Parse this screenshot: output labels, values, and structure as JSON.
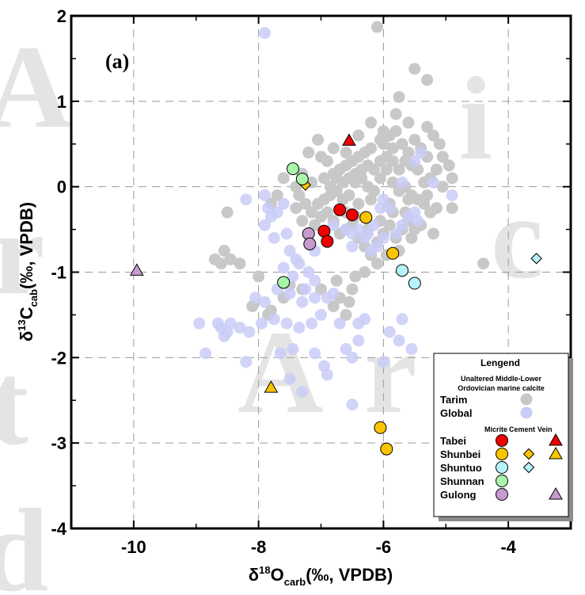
{
  "chart_data": {
    "type": "scatter",
    "panel_label": "(a)",
    "xlabel": {
      "prefix": "δ",
      "sup": "18",
      "main": "O",
      "sub": "carb",
      "suffix": "(‰, VPDB)"
    },
    "ylabel": {
      "prefix": "δ",
      "sup": "13",
      "main": "C",
      "sub": "cab",
      "suffix": "(‰, VPDB)"
    },
    "xlim": [
      -11,
      -3
    ],
    "ylim": [
      -4,
      2
    ],
    "xticks": [
      -10,
      -8,
      -6,
      -4
    ],
    "yticks": [
      -4,
      -3,
      -2,
      -1,
      0,
      1,
      2
    ],
    "xtick_labels": [
      "-10",
      "-8",
      "-6",
      "-4"
    ],
    "ytick_labels": [
      "-4",
      "-3",
      "-2",
      "-1",
      "0",
      "1",
      "2"
    ],
    "grid": true,
    "colors": {
      "tarim": "#c8c8c8",
      "global": "#c9ccf7",
      "tabei": "#ee0000",
      "shunbei": "#fcc400",
      "shuntuo": "#b6f3fb",
      "shunnan": "#a9f5a9",
      "gulong": "#c79ad0"
    },
    "series": [
      {
        "name": "Tarim",
        "marker": "circle",
        "color": "#c8c8c8",
        "points": [
          [
            -6.1,
            1.87
          ],
          [
            -5.5,
            1.38
          ],
          [
            -5.3,
            1.25
          ],
          [
            -5.75,
            1.05
          ],
          [
            -5.8,
            0.85
          ],
          [
            -5.6,
            0.75
          ],
          [
            -5.3,
            0.7
          ],
          [
            -5.2,
            0.6
          ],
          [
            -5.1,
            0.5
          ],
          [
            -6.05,
            0.55
          ],
          [
            -6.0,
            0.5
          ],
          [
            -5.9,
            0.6
          ],
          [
            -5.85,
            0.45
          ],
          [
            -5.7,
            0.5
          ],
          [
            -5.6,
            0.4
          ],
          [
            -5.5,
            0.55
          ],
          [
            -5.4,
            0.45
          ],
          [
            -5.3,
            0.35
          ],
          [
            -6.2,
            0.45
          ],
          [
            -6.3,
            0.4
          ],
          [
            -6.4,
            0.35
          ],
          [
            -6.5,
            0.3
          ],
          [
            -6.6,
            0.25
          ],
          [
            -6.7,
            0.2
          ],
          [
            -6.8,
            0.15
          ],
          [
            -6.9,
            0.3
          ],
          [
            -7.0,
            0.35
          ],
          [
            -7.2,
            0.4
          ],
          [
            -7.05,
            0.55
          ],
          [
            -6.95,
            0.1
          ],
          [
            -6.85,
            0.0
          ],
          [
            -6.75,
            -0.05
          ],
          [
            -6.65,
            -0.15
          ],
          [
            -6.55,
            -0.1
          ],
          [
            -6.45,
            0.05
          ],
          [
            -6.35,
            0.1
          ],
          [
            -6.25,
            0.0
          ],
          [
            -6.15,
            -0.05
          ],
          [
            -6.05,
            0.1
          ],
          [
            -5.95,
            0.2
          ],
          [
            -5.85,
            0.05
          ],
          [
            -5.75,
            -0.05
          ],
          [
            -5.65,
            0.0
          ],
          [
            -5.55,
            -0.1
          ],
          [
            -5.45,
            -0.15
          ],
          [
            -5.35,
            -0.2
          ],
          [
            -5.25,
            -0.3
          ],
          [
            -5.15,
            -0.25
          ],
          [
            -5.05,
            0.0
          ],
          [
            -4.95,
            0.25
          ],
          [
            -4.9,
            0.1
          ],
          [
            -5.05,
            0.35
          ],
          [
            -5.15,
            0.2
          ],
          [
            -5.25,
            0.1
          ],
          [
            -5.35,
            0.05
          ],
          [
            -5.45,
            0.2
          ],
          [
            -5.55,
            0.25
          ],
          [
            -5.65,
            0.3
          ],
          [
            -5.75,
            0.2
          ],
          [
            -5.85,
            0.3
          ],
          [
            -5.95,
            0.35
          ],
          [
            -6.05,
            0.3
          ],
          [
            -6.15,
            0.2
          ],
          [
            -6.25,
            0.25
          ],
          [
            -6.35,
            0.2
          ],
          [
            -6.45,
            0.15
          ],
          [
            -6.55,
            0.1
          ],
          [
            -6.65,
            0.05
          ],
          [
            -6.75,
            0.1
          ],
          [
            -6.85,
            -0.1
          ],
          [
            -6.95,
            -0.15
          ],
          [
            -7.05,
            -0.2
          ],
          [
            -7.15,
            -0.3
          ],
          [
            -7.25,
            -0.2
          ],
          [
            -7.35,
            -0.1
          ],
          [
            -7.4,
            -0.25
          ],
          [
            -7.3,
            -0.4
          ],
          [
            -7.1,
            -0.45
          ],
          [
            -7.0,
            -0.35
          ],
          [
            -6.9,
            -0.3
          ],
          [
            -6.8,
            -0.4
          ],
          [
            -6.7,
            -0.55
          ],
          [
            -6.6,
            -0.5
          ],
          [
            -6.5,
            -0.45
          ],
          [
            -6.4,
            -0.6
          ],
          [
            -6.3,
            -0.7
          ],
          [
            -6.2,
            -0.8
          ],
          [
            -6.1,
            -0.65
          ],
          [
            -6.0,
            -0.55
          ],
          [
            -5.9,
            -0.45
          ],
          [
            -5.8,
            -0.6
          ],
          [
            -5.7,
            -0.5
          ],
          [
            -5.6,
            -0.4
          ],
          [
            -5.5,
            -0.5
          ],
          [
            -6.1,
            -0.9
          ],
          [
            -6.3,
            -1.0
          ],
          [
            -6.45,
            -1.05
          ],
          [
            -6.5,
            -1.2
          ],
          [
            -6.55,
            -1.35
          ],
          [
            -6.6,
            -1.5
          ],
          [
            -6.7,
            -1.3
          ],
          [
            -6.8,
            -1.4
          ],
          [
            -6.75,
            -1.1
          ],
          [
            -7.0,
            -1.2
          ],
          [
            -7.3,
            -1.2
          ],
          [
            -7.5,
            -1.15
          ],
          [
            -7.6,
            -1.3
          ],
          [
            -7.8,
            -1.45
          ],
          [
            -7.85,
            -1.5
          ],
          [
            -8.0,
            -1.05
          ],
          [
            -8.1,
            -1.4
          ],
          [
            -8.3,
            -0.9
          ],
          [
            -8.45,
            -0.85
          ],
          [
            -8.55,
            -0.75
          ],
          [
            -8.6,
            -0.9
          ],
          [
            -8.7,
            -0.85
          ],
          [
            -8.5,
            -0.3
          ],
          [
            -7.8,
            -0.2
          ],
          [
            -7.7,
            -0.1
          ],
          [
            -7.6,
            0.1
          ],
          [
            -7.4,
            0.0
          ],
          [
            -7.3,
            0.15
          ],
          [
            -7.15,
            0.05
          ],
          [
            -6.8,
            0.45
          ],
          [
            -6.6,
            0.4
          ],
          [
            -6.4,
            0.6
          ],
          [
            -6.2,
            0.75
          ],
          [
            -6.0,
            0.65
          ],
          [
            -5.8,
            0.65
          ],
          [
            -4.9,
            -0.25
          ],
          [
            -4.4,
            -0.9
          ],
          [
            -5.2,
            -0.55
          ],
          [
            -5.4,
            -0.45
          ],
          [
            -5.3,
            -0.1
          ],
          [
            -5.6,
            -0.15
          ],
          [
            -5.9,
            -0.2
          ],
          [
            -6.2,
            -0.15
          ],
          [
            -6.4,
            -0.2
          ],
          [
            -6.6,
            -0.3
          ],
          [
            -6.45,
            -0.35
          ],
          [
            -6.25,
            -0.5
          ],
          [
            -6.05,
            -0.4
          ],
          [
            -5.85,
            -0.3
          ],
          [
            -5.65,
            -0.3
          ],
          [
            -5.55,
            -0.6
          ],
          [
            -5.75,
            -0.75
          ],
          [
            -5.95,
            -0.8
          ]
        ]
      },
      {
        "name": "Global",
        "marker": "circle",
        "color": "#c9ccf7",
        "points": [
          [
            -7.9,
            1.8
          ],
          [
            -8.2,
            -0.15
          ],
          [
            -7.9,
            -0.1
          ],
          [
            -7.85,
            -0.25
          ],
          [
            -7.8,
            -0.35
          ],
          [
            -7.9,
            -0.45
          ],
          [
            -7.7,
            -0.3
          ],
          [
            -7.6,
            -0.2
          ],
          [
            -7.75,
            -0.6
          ],
          [
            -7.55,
            -0.55
          ],
          [
            -7.5,
            -0.75
          ],
          [
            -7.4,
            -0.85
          ],
          [
            -7.6,
            -0.95
          ],
          [
            -7.45,
            -1.05
          ],
          [
            -7.35,
            -0.9
          ],
          [
            -7.2,
            -1.0
          ],
          [
            -7.1,
            -1.1
          ],
          [
            -7.25,
            -1.2
          ],
          [
            -7.5,
            -1.25
          ],
          [
            -7.7,
            -1.2
          ],
          [
            -7.9,
            -1.35
          ],
          [
            -8.05,
            -1.3
          ],
          [
            -7.3,
            -1.35
          ],
          [
            -7.1,
            -1.3
          ],
          [
            -6.9,
            -1.3
          ],
          [
            -6.8,
            -1.25
          ],
          [
            -7.0,
            -1.5
          ],
          [
            -7.15,
            -1.6
          ],
          [
            -7.35,
            -1.65
          ],
          [
            -7.55,
            -1.6
          ],
          [
            -7.75,
            -1.55
          ],
          [
            -7.95,
            -1.6
          ],
          [
            -8.15,
            -1.7
          ],
          [
            -8.3,
            -1.65
          ],
          [
            -8.45,
            -1.6
          ],
          [
            -8.5,
            -1.7
          ],
          [
            -8.55,
            -1.75
          ],
          [
            -8.6,
            -1.65
          ],
          [
            -8.65,
            -1.6
          ],
          [
            -8.95,
            -1.6
          ],
          [
            -8.85,
            -1.95
          ],
          [
            -8.2,
            -2.05
          ],
          [
            -7.65,
            -1.95
          ],
          [
            -7.45,
            -1.9
          ],
          [
            -7.1,
            -1.95
          ],
          [
            -6.95,
            -2.1
          ],
          [
            -7.5,
            -2.25
          ],
          [
            -7.3,
            -2.4
          ],
          [
            -6.9,
            -2.2
          ],
          [
            -6.6,
            -1.9
          ],
          [
            -6.5,
            -2.0
          ],
          [
            -6.4,
            -1.8
          ],
          [
            -6.7,
            -1.6
          ],
          [
            -6.4,
            -1.6
          ],
          [
            -6.3,
            -1.55
          ],
          [
            -5.7,
            -1.55
          ],
          [
            -5.75,
            -1.8
          ],
          [
            -5.55,
            -1.9
          ],
          [
            -5.9,
            -1.7
          ],
          [
            -6.0,
            -2.05
          ],
          [
            -6.5,
            -2.55
          ],
          [
            -6.8,
            -0.45
          ],
          [
            -6.6,
            -0.5
          ],
          [
            -6.5,
            -0.55
          ],
          [
            -6.4,
            -0.5
          ],
          [
            -6.3,
            -0.6
          ],
          [
            -6.25,
            -0.55
          ],
          [
            -6.5,
            -0.7
          ],
          [
            -6.2,
            -0.75
          ],
          [
            -6.1,
            -0.7
          ],
          [
            -6.0,
            -0.6
          ],
          [
            -5.8,
            -0.55
          ],
          [
            -5.7,
            -0.45
          ],
          [
            -5.6,
            -0.35
          ],
          [
            -5.5,
            -0.3
          ],
          [
            -5.45,
            -0.4
          ],
          [
            -5.9,
            -0.25
          ],
          [
            -6.0,
            -0.15
          ],
          [
            -5.7,
            0.05
          ],
          [
            -5.5,
            0.3
          ],
          [
            -5.4,
            0.4
          ],
          [
            -6.05,
            -0.25
          ],
          [
            -6.15,
            -0.45
          ],
          [
            -4.9,
            -0.1
          ],
          [
            -5.2,
            0.05
          ],
          [
            -7.1,
            -0.75
          ]
        ]
      },
      {
        "name": "Tabei",
        "group": "Micrite",
        "marker": "circle",
        "color": "#ee0000",
        "points": [
          [
            -6.7,
            -0.27
          ],
          [
            -6.5,
            -0.33
          ],
          [
            -6.95,
            -0.52
          ],
          [
            -6.9,
            -0.64
          ]
        ]
      },
      {
        "name": "Tabei",
        "group": "Vein",
        "marker": "triangle",
        "color": "#ee0000",
        "points": [
          [
            -6.55,
            0.54
          ]
        ]
      },
      {
        "name": "Shunbei",
        "group": "Micrite",
        "marker": "circle",
        "color": "#fcc400",
        "points": [
          [
            -6.28,
            -0.36
          ],
          [
            -5.85,
            -0.78
          ],
          [
            -6.05,
            -2.82
          ],
          [
            -5.95,
            -3.07
          ]
        ]
      },
      {
        "name": "Shunbei",
        "group": "Cement",
        "marker": "diamond",
        "color": "#fcc400",
        "points": [
          [
            -7.25,
            0.02
          ]
        ]
      },
      {
        "name": "Shunbei",
        "group": "Vein",
        "marker": "triangle",
        "color": "#fcc400",
        "points": [
          [
            -7.8,
            -2.35
          ]
        ]
      },
      {
        "name": "Shuntuo",
        "group": "Micrite",
        "marker": "circle",
        "color": "#b6f3fb",
        "points": [
          [
            -5.7,
            -0.98
          ],
          [
            -5.5,
            -1.13
          ]
        ]
      },
      {
        "name": "Shuntuo",
        "group": "Cement",
        "marker": "diamond",
        "color": "#b6f3fb",
        "points": [
          [
            -3.55,
            -0.84
          ]
        ]
      },
      {
        "name": "Shunnan",
        "group": "Micrite",
        "marker": "circle",
        "color": "#a9f5a9",
        "points": [
          [
            -7.45,
            0.21
          ],
          [
            -7.3,
            0.09
          ],
          [
            -7.6,
            -1.12
          ]
        ]
      },
      {
        "name": "Gulong",
        "group": "Micrite",
        "marker": "circle",
        "color": "#c79ad0",
        "points": [
          [
            -7.2,
            -0.55
          ],
          [
            -7.18,
            -0.67
          ]
        ]
      },
      {
        "name": "Gulong",
        "group": "Vein",
        "marker": "triangle",
        "color": "#c79ad0",
        "points": [
          [
            -9.95,
            -0.98
          ]
        ]
      }
    ],
    "legend": {
      "placement": "bottom-right",
      "title": "Lengend",
      "subtitle_line1": "Unaltered Middle-Lower",
      "subtitle_line2": "Ordovician marine calcite",
      "col_headers": [
        "Micrite",
        "Cement",
        "Vein"
      ],
      "entries_unaltered": [
        {
          "label": "Tarim",
          "color": "#c8c8c8"
        },
        {
          "label": "Global",
          "color": "#c9ccf7"
        }
      ],
      "entries_sites": [
        {
          "label": "Tabei",
          "color": "#ee0000",
          "micrite": true,
          "cement": false,
          "vein": true
        },
        {
          "label": "Shunbei",
          "color": "#fcc400",
          "micrite": true,
          "cement": true,
          "vein": true
        },
        {
          "label": "Shuntuo",
          "color": "#b6f3fb",
          "micrite": true,
          "cement": true,
          "vein": false
        },
        {
          "label": "Shunnan",
          "color": "#a9f5a9",
          "micrite": true,
          "cement": false,
          "vein": false
        },
        {
          "label": "Gulong",
          "color": "#c79ad0",
          "micrite": true,
          "cement": false,
          "vein": true
        }
      ]
    }
  }
}
